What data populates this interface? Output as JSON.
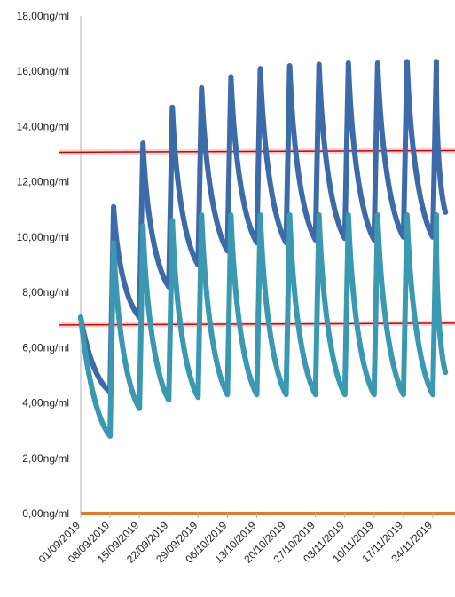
{
  "chart_data": {
    "type": "line",
    "title": "",
    "xlabel": "",
    "ylabel": "",
    "ylim": [
      0,
      18
    ],
    "y_tick_labels": [
      "0,00ng/ml",
      "2,00ng/ml",
      "4,00ng/ml",
      "6,00ng/ml",
      "8,00ng/ml",
      "10,00ng/ml",
      "12,00ng/ml",
      "14,00ng/ml",
      "16,00ng/ml",
      "18,00ng/ml"
    ],
    "x_tick_labels": [
      "01/09/2019",
      "08/09/2019",
      "15/09/2019",
      "22/09/2019",
      "29/09/2019",
      "06/10/2019",
      "13/10/2019",
      "20/10/2019",
      "27/10/2019",
      "03/11/2019",
      "10/11/2019",
      "17/11/2019",
      "24/11/2019"
    ],
    "grid": false,
    "legend": "none",
    "reference_lines": [
      {
        "value": 6.85,
        "color": "#cc0000"
      },
      {
        "value": 13.1,
        "color": "#cc0000"
      }
    ],
    "baseline": {
      "value": 0,
      "color": "#e07b2a"
    },
    "series": [
      {
        "color": "#3d6aa8",
        "x": [
          "01/09/2019",
          "08/09/2019",
          "08/09/2019",
          "15/09/2019",
          "15/09/2019",
          "22/09/2019",
          "22/09/2019",
          "29/09/2019",
          "29/09/2019",
          "06/10/2019",
          "06/10/2019",
          "13/10/2019",
          "13/10/2019",
          "20/10/2019",
          "20/10/2019",
          "27/10/2019",
          "27/10/2019",
          "03/11/2019",
          "03/11/2019",
          "10/11/2019",
          "10/11/2019",
          "17/11/2019",
          "17/11/2019",
          "24/11/2019",
          "24/11/2019",
          "27/11/2019"
        ],
        "values": [
          7.1,
          4.4,
          11.1,
          7.1,
          13.4,
          8.2,
          14.7,
          9.0,
          15.4,
          9.5,
          15.8,
          9.8,
          16.1,
          9.8,
          16.2,
          9.9,
          16.25,
          9.95,
          16.3,
          9.9,
          16.3,
          10.0,
          16.35,
          10.0,
          16.35,
          10.9
        ]
      },
      {
        "color": "#3a98b0",
        "x": [
          "01/09/2019",
          "08/09/2019",
          "08/09/2019",
          "15/09/2019",
          "15/09/2019",
          "22/09/2019",
          "22/09/2019",
          "29/09/2019",
          "29/09/2019",
          "06/10/2019",
          "06/10/2019",
          "13/10/2019",
          "13/10/2019",
          "20/10/2019",
          "20/10/2019",
          "27/10/2019",
          "27/10/2019",
          "03/11/2019",
          "03/11/2019",
          "10/11/2019",
          "10/11/2019",
          "17/11/2019",
          "17/11/2019",
          "24/11/2019",
          "24/11/2019",
          "27/11/2019"
        ],
        "values": [
          7.1,
          2.8,
          9.8,
          3.8,
          10.4,
          4.1,
          10.6,
          4.2,
          10.8,
          4.3,
          10.8,
          4.3,
          10.8,
          4.3,
          10.8,
          4.3,
          10.8,
          4.3,
          10.8,
          4.3,
          10.8,
          4.3,
          10.8,
          4.3,
          10.8,
          5.1
        ]
      }
    ]
  }
}
